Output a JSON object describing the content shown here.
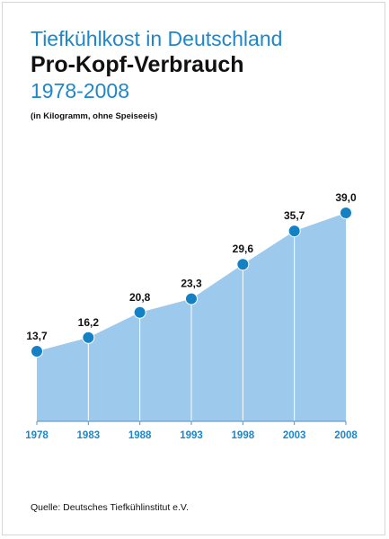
{
  "header": {
    "title_line1": "Tiefkühlkost in Deutschland",
    "title_line2": "Pro-Kopf-Verbrauch",
    "title_line3": "1978-2008",
    "subtitle": "(in Kilogramm, ohne Speiseeis)"
  },
  "footer": {
    "source": "Quelle: Deutsches Tiefkühlinstitut e.V."
  },
  "colors": {
    "accent_blue": "#1f86c8",
    "area_fill": "#9cc9ec",
    "marker": "#1581c5",
    "title_dark": "#111111"
  },
  "chart_data": {
    "type": "area",
    "x": [
      "1978",
      "1983",
      "1988",
      "1993",
      "1998",
      "2003",
      "2008"
    ],
    "values": [
      13.7,
      16.2,
      20.8,
      23.3,
      29.6,
      35.7,
      39.0
    ],
    "labels": [
      "13,7",
      "16,2",
      "20,8",
      "23,3",
      "29,6",
      "35,7",
      "39,0"
    ],
    "title": "Tiefkühlkost in Deutschland Pro-Kopf-Verbrauch 1978-2008",
    "xlabel": "",
    "ylabel": "",
    "ylim": [
      0,
      42
    ],
    "grid": false,
    "markers": true,
    "drop_lines": true
  }
}
